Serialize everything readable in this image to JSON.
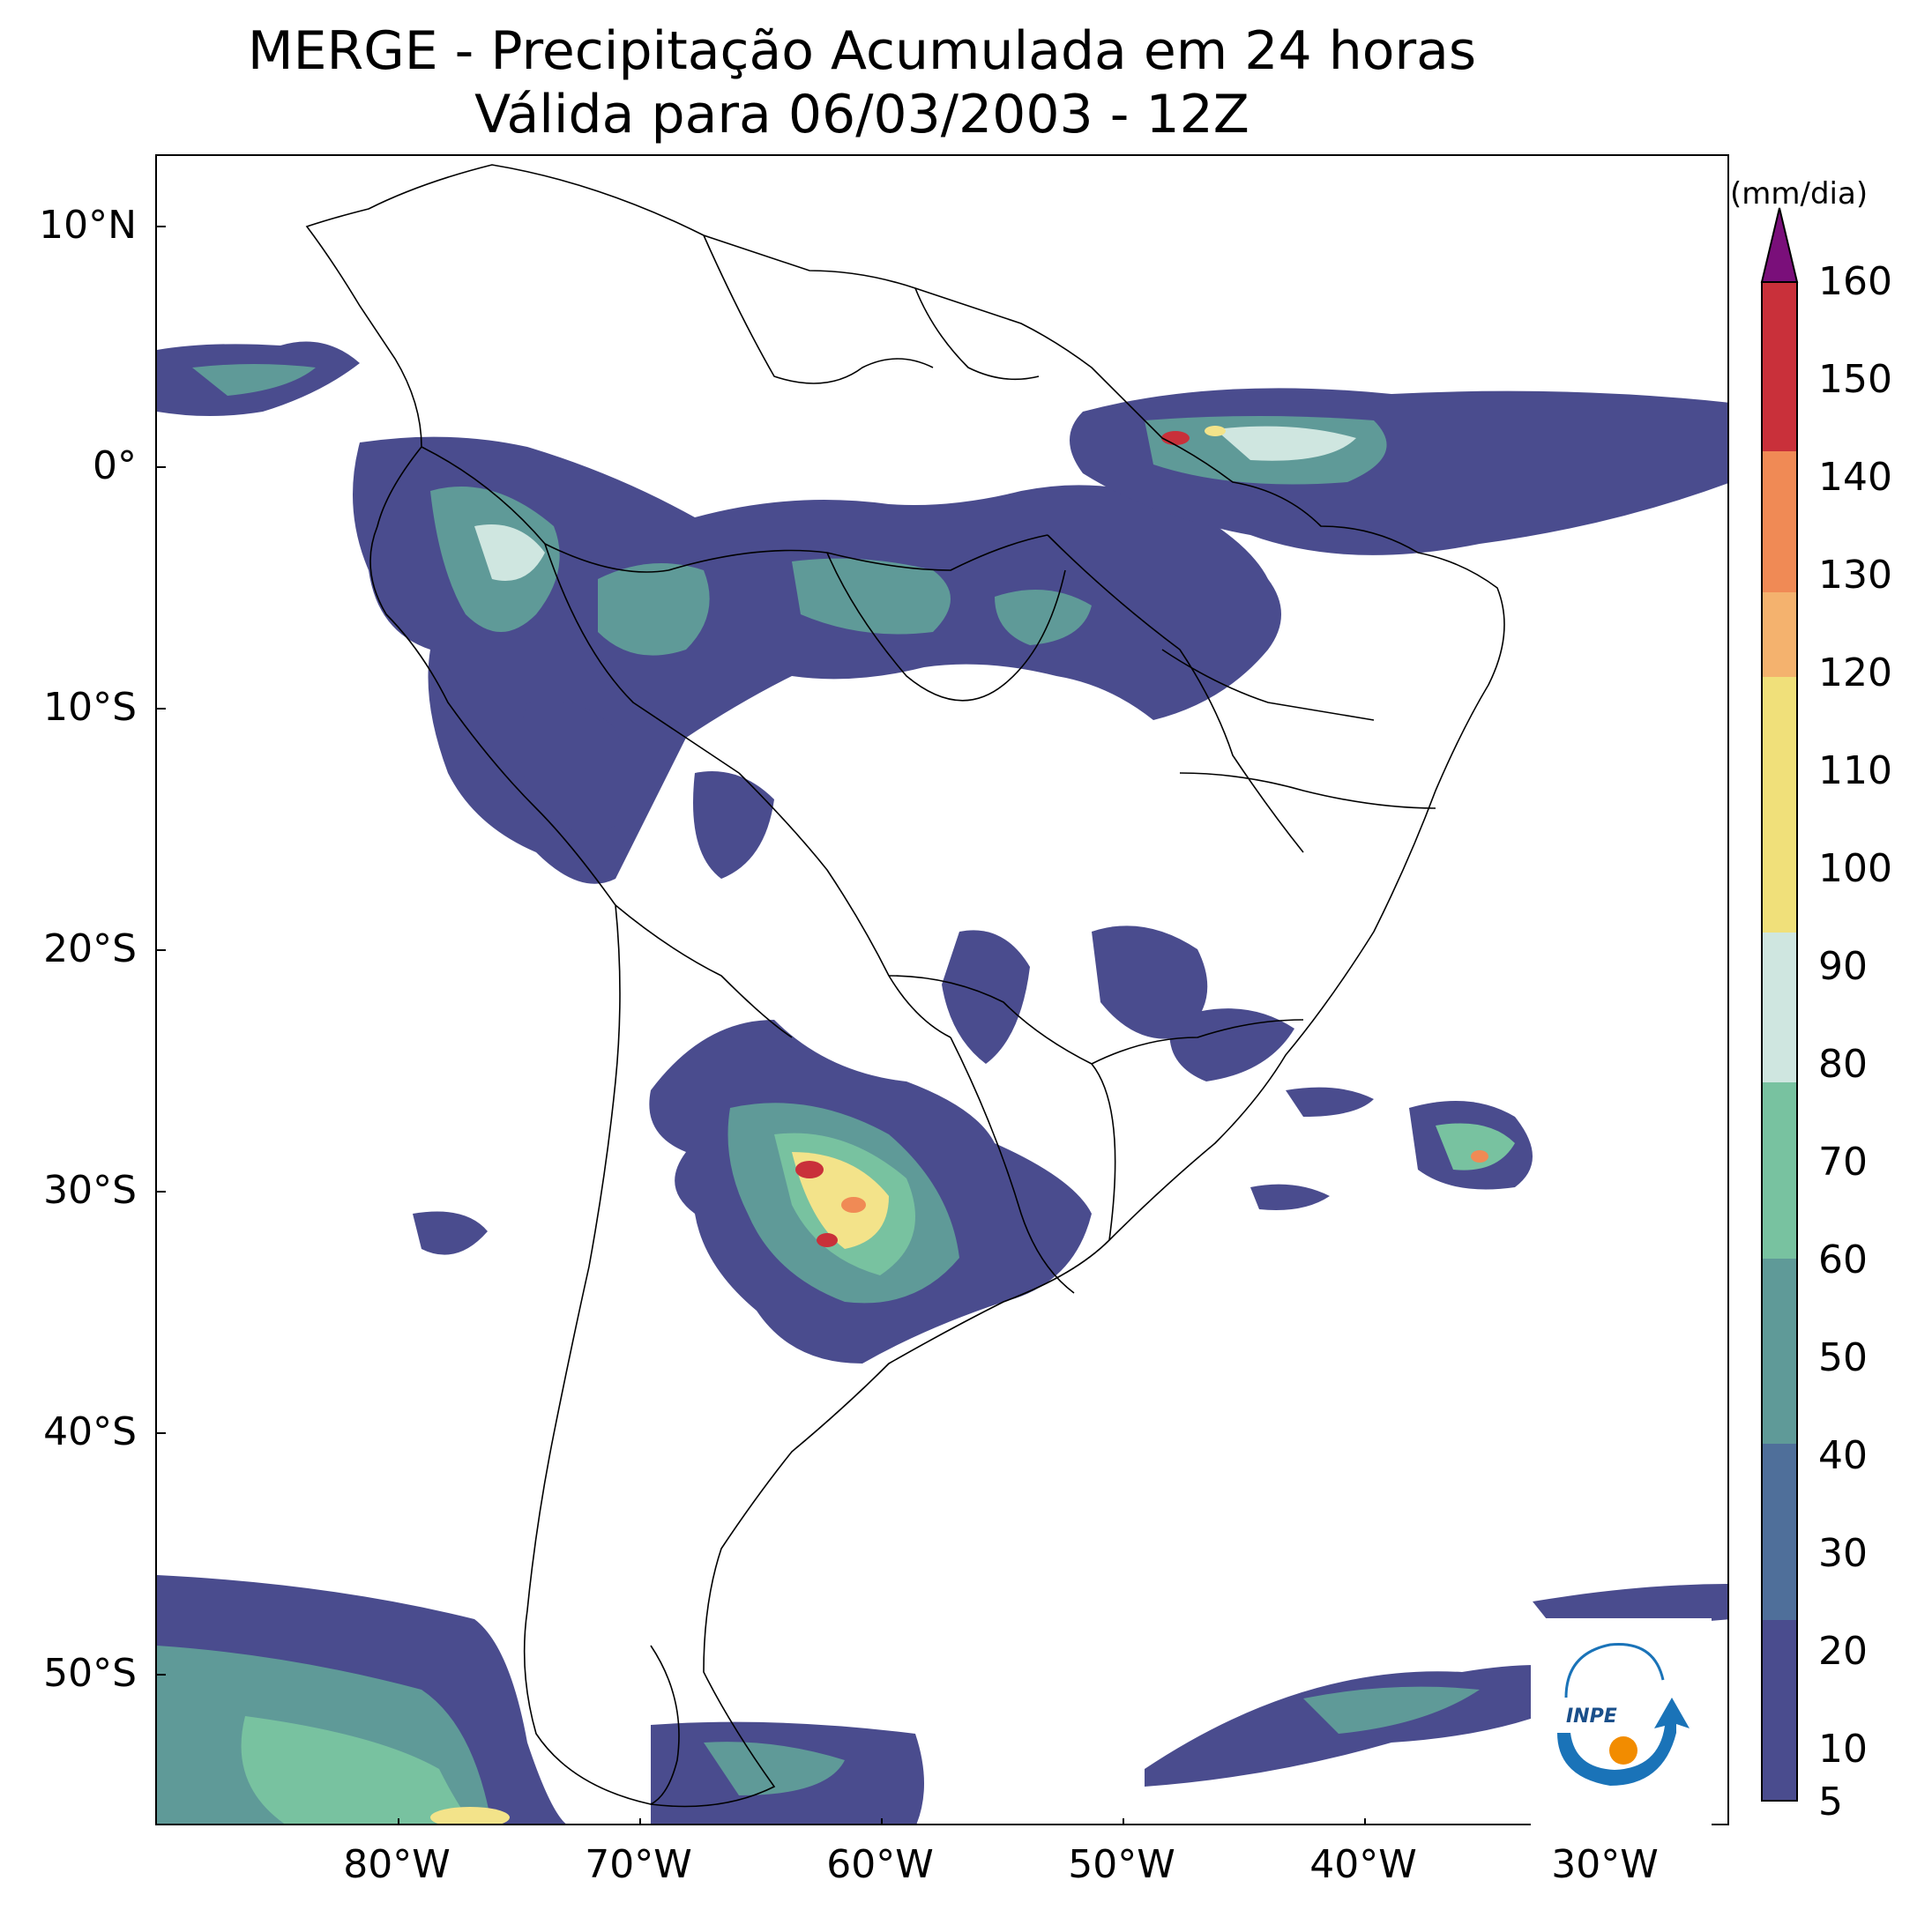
{
  "title": {
    "line1": "MERGE - Precipitação Acumulada em 24 horas",
    "line2": "Válida para 06/03/2003 - 12Z"
  },
  "axes": {
    "lat_labels": [
      "10°N",
      "0°",
      "10°S",
      "20°S",
      "30°S",
      "40°S",
      "50°S"
    ],
    "lon_labels": [
      "80°W",
      "70°W",
      "60°W",
      "50°W",
      "40°W",
      "30°W"
    ]
  },
  "colorbar": {
    "unit": "(mm/dia)",
    "tick_labels": [
      "5",
      "10",
      "20",
      "30",
      "40",
      "50",
      "60",
      "70",
      "80",
      "90",
      "100",
      "110",
      "120",
      "130",
      "140",
      "150",
      "160"
    ],
    "min": 5,
    "max": 160,
    "extend": "max",
    "colors": {
      "band_5_20": "#4a4c8e",
      "band_20_30": "#4f6f9a",
      "band_30_40": "#5f9a98",
      "band_40_50": "#78c2a0",
      "band_50_65": "#cfe6e0",
      "band_65_100": "#f0e07a",
      "band_100_130": "#f49a58",
      "band_130_160": "#c73a3f",
      "over": "#7a0f7a"
    }
  },
  "logo": {
    "text": "INPE"
  },
  "colors": {
    "rain_light": "#4a4c8e",
    "rain_mid": "#5b8fa0",
    "rain_green": "#74c09e",
    "rain_pale": "#d7ece6",
    "rain_yellow": "#f3e38a",
    "rain_orange": "#f08a55",
    "rain_red": "#c9303a",
    "border": "#000000",
    "logo_blue": "#1a73b8",
    "logo_orange": "#f28c00"
  }
}
